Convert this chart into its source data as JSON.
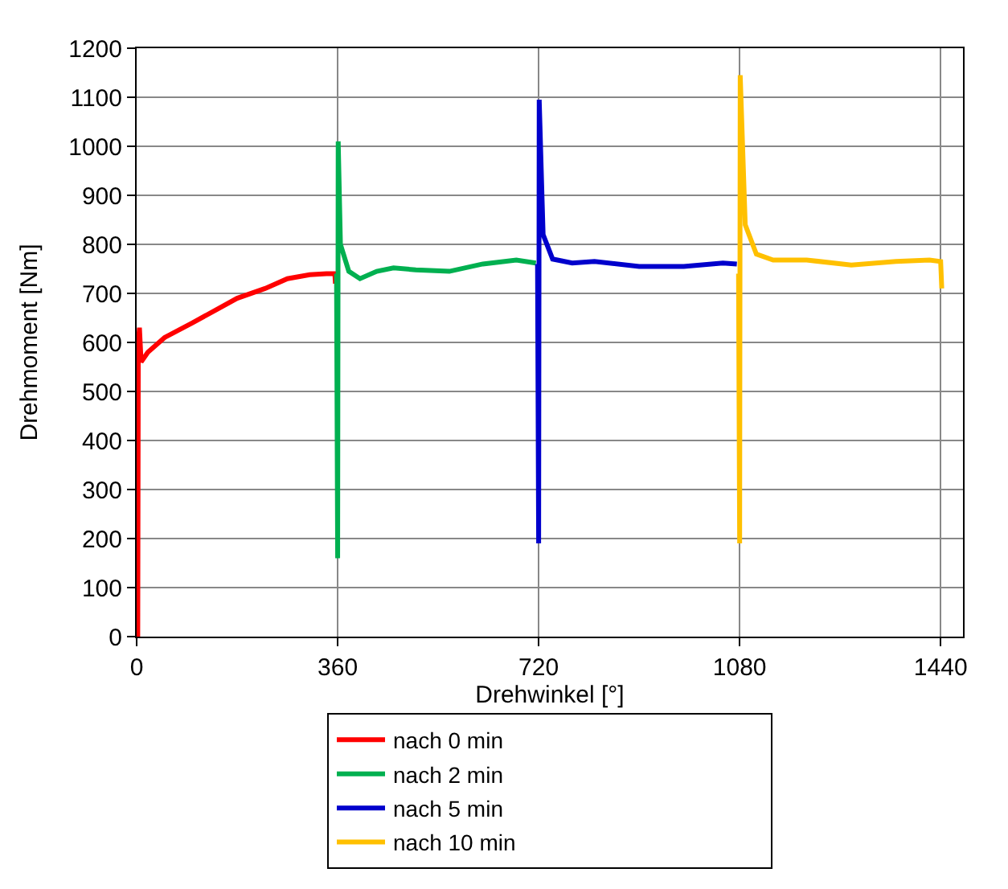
{
  "chart_data": {
    "type": "line",
    "xlabel": "Drehwinkel [°]",
    "ylabel": "Drehmoment [Nm]",
    "xlim": [
      0,
      1480
    ],
    "xticks": [
      0,
      360,
      720,
      1080,
      1440
    ],
    "ylim": [
      0,
      1200
    ],
    "yticks": [
      0,
      100,
      200,
      300,
      400,
      500,
      600,
      700,
      800,
      900,
      1000,
      1100,
      1200
    ],
    "grid": true,
    "legend": "bottom",
    "marker": "none",
    "line_style": "solid",
    "series": [
      {
        "name": "nach 0 min",
        "color": "#ff0000",
        "x": [
          2,
          3,
          5,
          8,
          20,
          50,
          100,
          140,
          180,
          230,
          270,
          310,
          340,
          355,
          356
        ],
        "values": [
          0,
          600,
          630,
          560,
          580,
          610,
          640,
          665,
          690,
          710,
          730,
          738,
          740,
          740,
          720
        ]
      },
      {
        "name": "nach 2 min",
        "color": "#00b050",
        "x": [
          358,
          360,
          361,
          365,
          380,
          400,
          430,
          460,
          500,
          560,
          620,
          680,
          715
        ],
        "values": [
          740,
          160,
          1010,
          800,
          745,
          730,
          745,
          752,
          748,
          745,
          760,
          768,
          762
        ]
      },
      {
        "name": "nach 5 min",
        "color": "#0000cc",
        "x": [
          718,
          720,
          721,
          728,
          745,
          780,
          820,
          900,
          980,
          1050,
          1075
        ],
        "values": [
          760,
          190,
          1095,
          820,
          770,
          762,
          765,
          755,
          755,
          762,
          760
        ]
      },
      {
        "name": "nach 10 min",
        "color": "#ffc000",
        "x": [
          1078,
          1080,
          1081,
          1090,
          1110,
          1140,
          1200,
          1280,
          1360,
          1420,
          1440,
          1442
        ],
        "values": [
          740,
          190,
          1145,
          840,
          780,
          768,
          768,
          758,
          765,
          768,
          765,
          710
        ]
      }
    ]
  }
}
